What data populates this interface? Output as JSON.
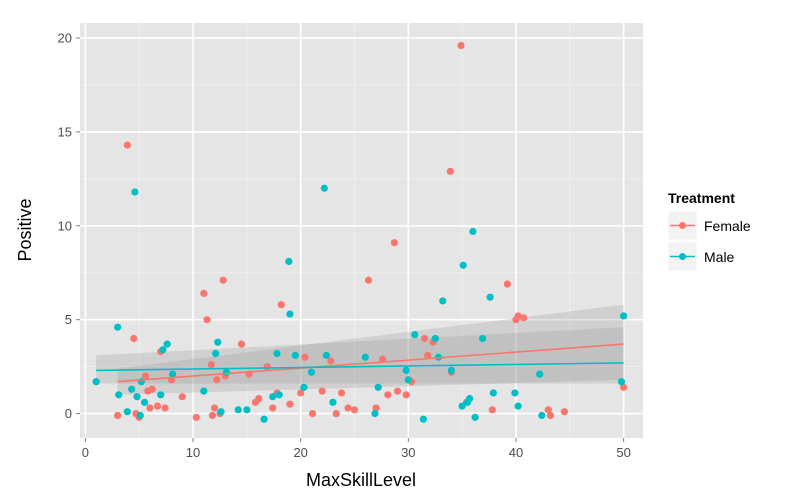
{
  "chart_data": {
    "type": "scatter",
    "xlabel": "MaxSkillLevel",
    "ylabel": "Positive",
    "xlim": [
      -0.5,
      51.8
    ],
    "ylim": [
      -1.3,
      20.8
    ],
    "x_ticks": [
      0,
      10,
      20,
      30,
      40,
      50
    ],
    "y_ticks": [
      0,
      5,
      10,
      15,
      20
    ],
    "grid": true,
    "legend": {
      "title": "Treatment",
      "placement": "right",
      "entries": [
        "Female",
        "Male"
      ]
    },
    "series": [
      {
        "name": "Female",
        "color": "#f8766d",
        "trend": {
          "x": [
            3,
            50
          ],
          "y": [
            1.7,
            3.7
          ]
        },
        "band": {
          "x": [
            3,
            50
          ],
          "lower": [
            1.0,
            1.8
          ],
          "upper": [
            2.4,
            5.8
          ]
        },
        "points": [
          [
            3.0,
            -0.1
          ],
          [
            3.9,
            14.3
          ],
          [
            4.5,
            4.0
          ],
          [
            4.7,
            0.0
          ],
          [
            5.0,
            -0.2
          ],
          [
            5.6,
            2.0
          ],
          [
            5.8,
            1.2
          ],
          [
            6.0,
            0.3
          ],
          [
            6.2,
            1.3
          ],
          [
            6.7,
            0.4
          ],
          [
            7.0,
            3.3
          ],
          [
            7.4,
            0.3
          ],
          [
            8.0,
            1.8
          ],
          [
            9.0,
            0.9
          ],
          [
            10.3,
            -0.2
          ],
          [
            11.0,
            6.4
          ],
          [
            11.3,
            5.0
          ],
          [
            11.7,
            2.6
          ],
          [
            11.8,
            -0.1
          ],
          [
            12.0,
            0.3
          ],
          [
            12.2,
            1.8
          ],
          [
            12.5,
            0.0
          ],
          [
            12.8,
            7.1
          ],
          [
            13.0,
            2.0
          ],
          [
            14.5,
            3.7
          ],
          [
            15.2,
            2.1
          ],
          [
            15.8,
            0.6
          ],
          [
            16.1,
            0.8
          ],
          [
            16.9,
            2.5
          ],
          [
            17.4,
            0.3
          ],
          [
            17.8,
            1.1
          ],
          [
            18.2,
            5.8
          ],
          [
            19.0,
            0.5
          ],
          [
            20.0,
            1.1
          ],
          [
            20.4,
            3.0
          ],
          [
            21.1,
            0.0
          ],
          [
            22.0,
            1.2
          ],
          [
            22.8,
            2.8
          ],
          [
            23.3,
            0.0
          ],
          [
            23.8,
            1.1
          ],
          [
            24.4,
            0.3
          ],
          [
            25.0,
            0.2
          ],
          [
            26.3,
            7.1
          ],
          [
            27.0,
            0.3
          ],
          [
            27.6,
            2.9
          ],
          [
            28.1,
            1.0
          ],
          [
            28.7,
            9.1
          ],
          [
            29.0,
            1.2
          ],
          [
            29.8,
            1.0
          ],
          [
            30.3,
            1.7
          ],
          [
            31.5,
            4.0
          ],
          [
            31.8,
            3.1
          ],
          [
            32.3,
            3.8
          ],
          [
            33.9,
            12.9
          ],
          [
            34.0,
            2.2
          ],
          [
            34.9,
            19.6
          ],
          [
            35.4,
            0.6
          ],
          [
            37.8,
            0.2
          ],
          [
            39.2,
            6.9
          ],
          [
            40.0,
            5.0
          ],
          [
            40.2,
            5.2
          ],
          [
            40.7,
            5.1
          ],
          [
            43.0,
            0.2
          ],
          [
            43.2,
            -0.1
          ],
          [
            44.5,
            0.1
          ],
          [
            50.0,
            1.4
          ]
        ]
      },
      {
        "name": "Male",
        "color": "#00bfc4",
        "trend": {
          "x": [
            1,
            50
          ],
          "y": [
            2.3,
            2.7
          ]
        },
        "band": {
          "x": [
            1,
            50
          ],
          "lower": [
            1.6,
            1.6
          ],
          "upper": [
            3.1,
            4.6
          ]
        },
        "points": [
          [
            1.0,
            1.7
          ],
          [
            3.0,
            4.6
          ],
          [
            3.1,
            1.0
          ],
          [
            3.9,
            0.1
          ],
          [
            4.3,
            1.3
          ],
          [
            4.6,
            11.8
          ],
          [
            4.8,
            0.9
          ],
          [
            5.1,
            -0.1
          ],
          [
            5.2,
            1.7
          ],
          [
            5.5,
            0.6
          ],
          [
            7.0,
            1.0
          ],
          [
            7.2,
            3.4
          ],
          [
            7.6,
            3.7
          ],
          [
            8.1,
            2.1
          ],
          [
            11.0,
            1.2
          ],
          [
            12.1,
            3.2
          ],
          [
            12.3,
            3.8
          ],
          [
            12.6,
            0.1
          ],
          [
            13.1,
            2.2
          ],
          [
            14.2,
            0.2
          ],
          [
            15.0,
            0.2
          ],
          [
            16.6,
            -0.3
          ],
          [
            17.4,
            0.9
          ],
          [
            17.8,
            3.2
          ],
          [
            18.0,
            1.0
          ],
          [
            18.9,
            8.1
          ],
          [
            19.0,
            5.3
          ],
          [
            19.5,
            3.1
          ],
          [
            20.3,
            1.4
          ],
          [
            21.0,
            2.2
          ],
          [
            22.2,
            12.0
          ],
          [
            22.4,
            3.1
          ],
          [
            23.0,
            0.6
          ],
          [
            26.0,
            3.0
          ],
          [
            26.9,
            0.0
          ],
          [
            27.2,
            1.4
          ],
          [
            29.8,
            2.3
          ],
          [
            30.0,
            1.8
          ],
          [
            30.6,
            4.2
          ],
          [
            31.4,
            -0.3
          ],
          [
            32.5,
            4.0
          ],
          [
            32.8,
            3.0
          ],
          [
            33.2,
            6.0
          ],
          [
            34.0,
            2.3
          ],
          [
            35.0,
            0.4
          ],
          [
            35.1,
            7.9
          ],
          [
            35.5,
            0.6
          ],
          [
            35.7,
            0.8
          ],
          [
            36.0,
            9.7
          ],
          [
            36.2,
            -0.2
          ],
          [
            36.9,
            4.0
          ],
          [
            37.6,
            6.2
          ],
          [
            37.9,
            1.1
          ],
          [
            39.9,
            1.1
          ],
          [
            40.2,
            0.4
          ],
          [
            42.2,
            2.1
          ],
          [
            42.4,
            -0.1
          ],
          [
            49.8,
            1.7
          ],
          [
            50.0,
            5.2
          ]
        ]
      }
    ]
  }
}
